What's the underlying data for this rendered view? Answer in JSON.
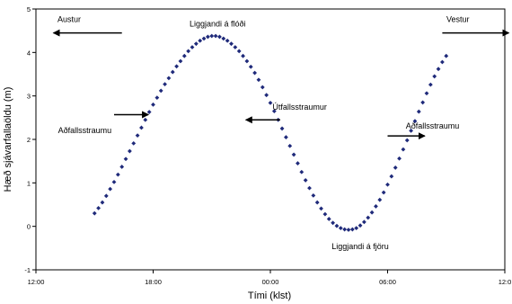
{
  "chart_data": {
    "type": "scatter",
    "title": "",
    "xlabel": "Tími (klst)",
    "ylabel": "Hæð sjávarfallaöldu (m)",
    "xlim": [
      12,
      36
    ],
    "ylim": [
      -1,
      5
    ],
    "x_ticks": [
      12,
      18,
      24,
      30,
      36
    ],
    "x_tick_labels": [
      "12:00",
      "18:00",
      "00:00",
      "06:00",
      "12:0"
    ],
    "y_ticks": [
      -1,
      0,
      1,
      2,
      3,
      4,
      5
    ],
    "y_tick_labels": [
      "-1",
      "0",
      "1",
      "2",
      "3",
      "4",
      "5"
    ],
    "grid": false,
    "marker_color": "#1f2a7a",
    "series": [
      {
        "values": [
          {
            "x": 15.0,
            "y": 0.3
          },
          {
            "x": 15.2,
            "y": 0.42
          },
          {
            "x": 15.4,
            "y": 0.55
          },
          {
            "x": 15.6,
            "y": 0.7
          },
          {
            "x": 15.8,
            "y": 0.86
          },
          {
            "x": 16.0,
            "y": 1.02
          },
          {
            "x": 16.2,
            "y": 1.19
          },
          {
            "x": 16.4,
            "y": 1.37
          },
          {
            "x": 16.6,
            "y": 1.55
          },
          {
            "x": 16.8,
            "y": 1.73
          },
          {
            "x": 17.0,
            "y": 1.91
          },
          {
            "x": 17.2,
            "y": 2.09
          },
          {
            "x": 17.4,
            "y": 2.27
          },
          {
            "x": 17.6,
            "y": 2.45
          },
          {
            "x": 17.8,
            "y": 2.63
          },
          {
            "x": 18.0,
            "y": 2.8
          },
          {
            "x": 18.2,
            "y": 2.96
          },
          {
            "x": 18.4,
            "y": 3.12
          },
          {
            "x": 18.6,
            "y": 3.27
          },
          {
            "x": 18.8,
            "y": 3.41
          },
          {
            "x": 19.0,
            "y": 3.55
          },
          {
            "x": 19.2,
            "y": 3.68
          },
          {
            "x": 19.4,
            "y": 3.8
          },
          {
            "x": 19.6,
            "y": 3.92
          },
          {
            "x": 19.8,
            "y": 4.03
          },
          {
            "x": 20.0,
            "y": 4.12
          },
          {
            "x": 20.2,
            "y": 4.2
          },
          {
            "x": 20.4,
            "y": 4.27
          },
          {
            "x": 20.6,
            "y": 4.32
          },
          {
            "x": 20.8,
            "y": 4.36
          },
          {
            "x": 21.0,
            "y": 4.38
          },
          {
            "x": 21.2,
            "y": 4.38
          },
          {
            "x": 21.4,
            "y": 4.36
          },
          {
            "x": 21.6,
            "y": 4.32
          },
          {
            "x": 21.8,
            "y": 4.27
          },
          {
            "x": 22.0,
            "y": 4.2
          },
          {
            "x": 22.2,
            "y": 4.12
          },
          {
            "x": 22.4,
            "y": 4.03
          },
          {
            "x": 22.6,
            "y": 3.92
          },
          {
            "x": 22.8,
            "y": 3.8
          },
          {
            "x": 23.0,
            "y": 3.67
          },
          {
            "x": 23.2,
            "y": 3.53
          },
          {
            "x": 23.4,
            "y": 3.37
          },
          {
            "x": 23.6,
            "y": 3.2
          },
          {
            "x": 23.8,
            "y": 3.02
          },
          {
            "x": 24.0,
            "y": 2.84
          },
          {
            "x": 24.2,
            "y": 2.65
          },
          {
            "x": 24.4,
            "y": 2.45
          },
          {
            "x": 24.6,
            "y": 2.25
          },
          {
            "x": 24.8,
            "y": 2.05
          },
          {
            "x": 25.0,
            "y": 1.85
          },
          {
            "x": 25.2,
            "y": 1.65
          },
          {
            "x": 25.4,
            "y": 1.45
          },
          {
            "x": 25.6,
            "y": 1.25
          },
          {
            "x": 25.8,
            "y": 1.06
          },
          {
            "x": 26.0,
            "y": 0.88
          },
          {
            "x": 26.2,
            "y": 0.71
          },
          {
            "x": 26.4,
            "y": 0.55
          },
          {
            "x": 26.6,
            "y": 0.41
          },
          {
            "x": 26.8,
            "y": 0.28
          },
          {
            "x": 27.0,
            "y": 0.17
          },
          {
            "x": 27.2,
            "y": 0.08
          },
          {
            "x": 27.4,
            "y": 0.01
          },
          {
            "x": 27.6,
            "y": -0.04
          },
          {
            "x": 27.8,
            "y": -0.07
          },
          {
            "x": 28.0,
            "y": -0.08
          },
          {
            "x": 28.2,
            "y": -0.07
          },
          {
            "x": 28.4,
            "y": -0.04
          },
          {
            "x": 28.6,
            "y": 0.02
          },
          {
            "x": 28.8,
            "y": 0.1
          },
          {
            "x": 29.0,
            "y": 0.2
          },
          {
            "x": 29.2,
            "y": 0.32
          },
          {
            "x": 29.4,
            "y": 0.46
          },
          {
            "x": 29.6,
            "y": 0.61
          },
          {
            "x": 29.8,
            "y": 0.78
          },
          {
            "x": 30.0,
            "y": 0.96
          },
          {
            "x": 30.2,
            "y": 1.15
          },
          {
            "x": 30.4,
            "y": 1.35
          },
          {
            "x": 30.6,
            "y": 1.56
          },
          {
            "x": 30.8,
            "y": 1.77
          },
          {
            "x": 31.0,
            "y": 1.98
          },
          {
            "x": 31.2,
            "y": 2.2
          },
          {
            "x": 31.4,
            "y": 2.42
          },
          {
            "x": 31.6,
            "y": 2.64
          },
          {
            "x": 31.8,
            "y": 2.85
          },
          {
            "x": 32.0,
            "y": 3.06
          },
          {
            "x": 32.2,
            "y": 3.26
          },
          {
            "x": 32.4,
            "y": 3.45
          },
          {
            "x": 32.6,
            "y": 3.62
          },
          {
            "x": 32.8,
            "y": 3.78
          },
          {
            "x": 33.0,
            "y": 3.92
          }
        ]
      }
    ],
    "annotations": [
      {
        "text": "Austur",
        "x": 13.7,
        "y": 4.7,
        "arrow_from": [
          16.4,
          4.45
        ],
        "arrow_to": [
          12.9,
          4.45
        ]
      },
      {
        "text": "Vestur",
        "x": 33.6,
        "y": 4.7,
        "arrow_from": [
          32.8,
          4.45
        ],
        "arrow_to": [
          36.2,
          4.45
        ]
      },
      {
        "text": "Liggjandi á flóði",
        "x": 21.3,
        "y": 4.6
      },
      {
        "text": "Aðfallsstraumu",
        "x": 14.5,
        "y": 2.15,
        "arrow_from": [
          16.0,
          2.57
        ],
        "arrow_to": [
          17.75,
          2.57
        ]
      },
      {
        "text": "Útfallsstraumur",
        "x": 25.5,
        "y": 2.68,
        "arrow_from": [
          24.5,
          2.45
        ],
        "arrow_to": [
          22.75,
          2.45
        ]
      },
      {
        "text": "Aðfallsstraumu",
        "x": 32.3,
        "y": 2.25,
        "arrow_from": [
          30.0,
          2.08
        ],
        "arrow_to": [
          31.9,
          2.08
        ]
      },
      {
        "text": "Liggjandi á fjöru",
        "x": 28.6,
        "y": -0.52
      }
    ]
  }
}
